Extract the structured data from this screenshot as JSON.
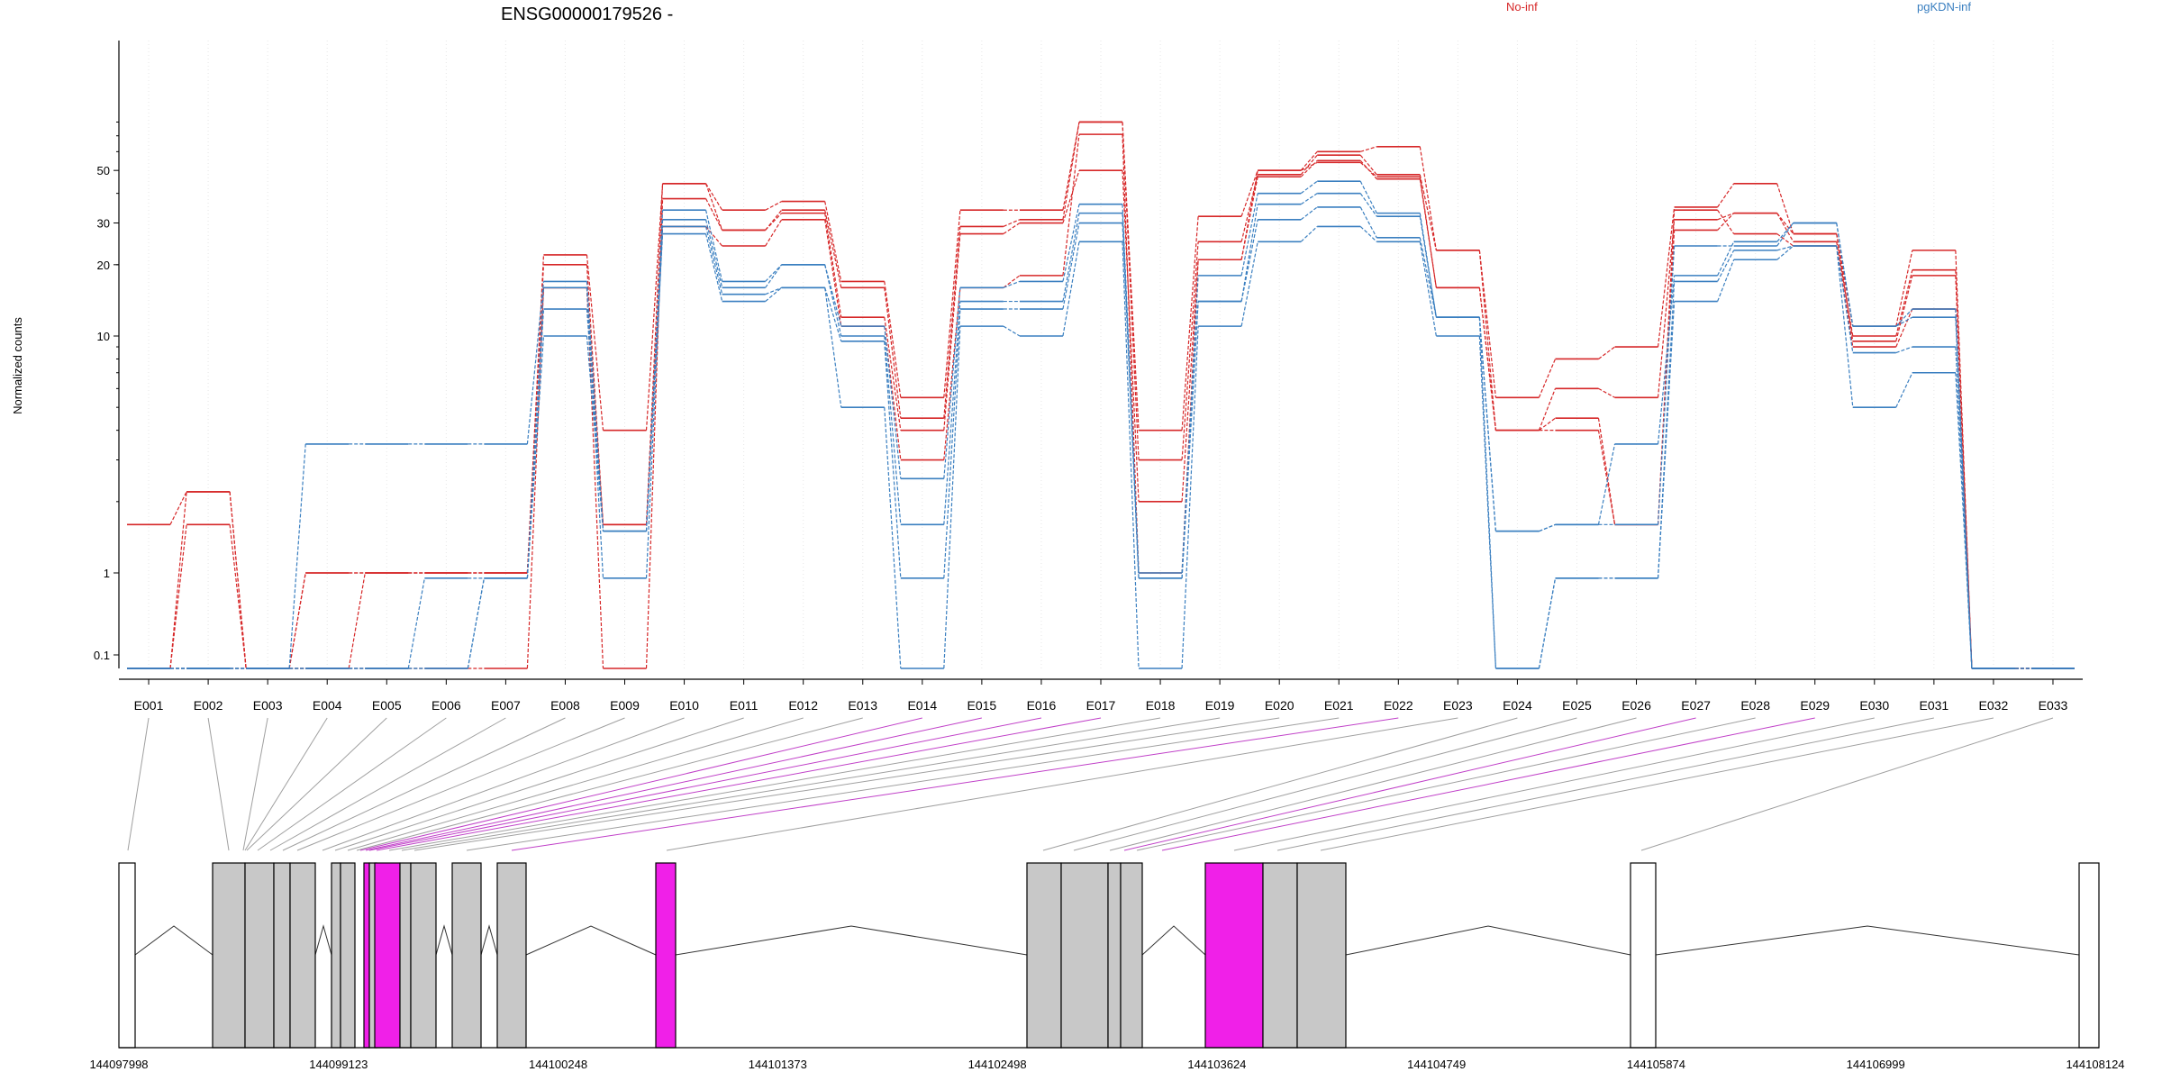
{
  "chart_data": {
    "type": "line",
    "title": "ENSG00000179526 -",
    "ylabel": "Normalized counts",
    "y_scale": "log",
    "y_ticks": [
      0.1,
      1,
      10,
      20,
      30,
      50
    ],
    "y_tick_labels": [
      "0.1",
      "1",
      "10",
      "20",
      "30",
      "50"
    ],
    "legend_placement": "top-right",
    "groups": [
      {
        "name": "No-inf",
        "color": "#d62728"
      },
      {
        "name": "pgKDN-inf",
        "color": "#3a7fc0"
      }
    ],
    "categories": [
      "E001",
      "E002",
      "E003",
      "E004",
      "E005",
      "E006",
      "E007",
      "E008",
      "E009",
      "E010",
      "E011",
      "E012",
      "E013",
      "E014",
      "E015",
      "E016",
      "E017",
      "E018",
      "E019",
      "E020",
      "E021",
      "E022",
      "E023",
      "E024",
      "E025",
      "E026",
      "E027",
      "E028",
      "E029",
      "E030",
      "E031",
      "E032",
      "E033"
    ],
    "series": [
      {
        "group": "No-inf",
        "values": [
          1.6,
          2.2,
          0.07,
          1.0,
          1.0,
          1.0,
          1.0,
          22,
          4.0,
          44,
          34,
          37,
          17,
          5.5,
          34,
          34,
          80,
          4.0,
          32,
          50,
          60,
          63,
          23,
          5.5,
          8.0,
          9.0,
          35,
          44,
          27,
          11,
          23,
          0.07,
          0.07
        ]
      },
      {
        "group": "No-inf",
        "values": [
          0.07,
          1.6,
          0.07,
          0.07,
          1.0,
          1.0,
          1.0,
          20,
          1.6,
          44,
          28,
          34,
          16,
          4.5,
          29,
          31,
          80,
          3.0,
          25,
          48,
          58,
          48,
          23,
          4.0,
          6.0,
          5.5,
          31,
          33,
          25,
          10,
          19,
          0.07,
          0.07
        ]
      },
      {
        "group": "No-inf",
        "values": [
          0.07,
          2.2,
          0.07,
          1.0,
          1.0,
          1.0,
          1.0,
          16,
          0.07,
          38,
          28,
          33,
          12,
          4.0,
          27,
          30,
          50,
          2.0,
          21,
          47,
          55,
          46,
          16,
          4.0,
          4.5,
          1.6,
          28,
          33,
          27,
          9.5,
          18,
          0.07,
          0.07
        ]
      },
      {
        "group": "No-inf",
        "values": [
          0.07,
          0.07,
          0.07,
          0.07,
          0.07,
          0.07,
          0.07,
          16,
          1.6,
          29,
          24,
          31,
          11,
          3.0,
          16,
          18,
          71,
          1.0,
          21,
          50,
          54,
          47,
          16,
          4.0,
          4.0,
          1.6,
          34,
          27,
          24,
          9.0,
          13,
          0.07,
          0.07
        ]
      },
      {
        "group": "pgKDN-inf",
        "values": [
          0.07,
          0.07,
          0.07,
          3.5,
          3.5,
          3.5,
          3.5,
          17,
          1.5,
          34,
          17,
          20,
          11,
          2.5,
          16,
          17,
          36,
          1.0,
          18,
          40,
          45,
          33,
          12,
          1.5,
          1.6,
          1.6,
          24,
          24,
          30,
          11,
          13,
          0.07,
          0.07
        ]
      },
      {
        "group": "pgKDN-inf",
        "values": [
          0.07,
          0.07,
          0.07,
          0.07,
          0.07,
          0.95,
          0.95,
          13,
          1.5,
          31,
          16,
          20,
          10,
          1.6,
          14,
          14,
          33,
          0.95,
          14,
          36,
          40,
          32,
          12,
          1.5,
          1.6,
          3.5,
          18,
          25,
          30,
          11,
          12,
          0.07,
          0.07
        ]
      },
      {
        "group": "pgKDN-inf",
        "values": [
          0.07,
          0.07,
          0.07,
          0.07,
          0.07,
          0.07,
          0.95,
          16,
          0.95,
          29,
          15,
          16,
          9.5,
          0.95,
          13,
          13,
          30,
          0.95,
          14,
          31,
          35,
          26,
          12,
          0.07,
          0.95,
          0.95,
          17,
          23,
          24,
          8.5,
          9.0,
          0.07,
          0.07
        ]
      },
      {
        "group": "pgKDN-inf",
        "values": [
          0.07,
          0.07,
          0.07,
          0.07,
          0.07,
          0.07,
          0.95,
          10,
          1.5,
          27,
          14,
          16,
          5.0,
          0.07,
          11,
          10,
          25,
          0.07,
          11,
          25,
          29,
          25,
          10,
          0.07,
          0.95,
          0.95,
          14,
          21,
          24,
          5.0,
          7.0,
          0.07,
          0.07
        ]
      }
    ],
    "gene_model": {
      "coordinate_labels": [
        "144097998",
        "144099123",
        "144100248",
        "144101373",
        "144102498",
        "144103624",
        "144104749",
        "144105874",
        "144106999",
        "144108124"
      ],
      "feature_colors": {
        "exon": "#c8c8c8",
        "highlight": "#f020e8",
        "utr": "#ffffff"
      }
    }
  }
}
